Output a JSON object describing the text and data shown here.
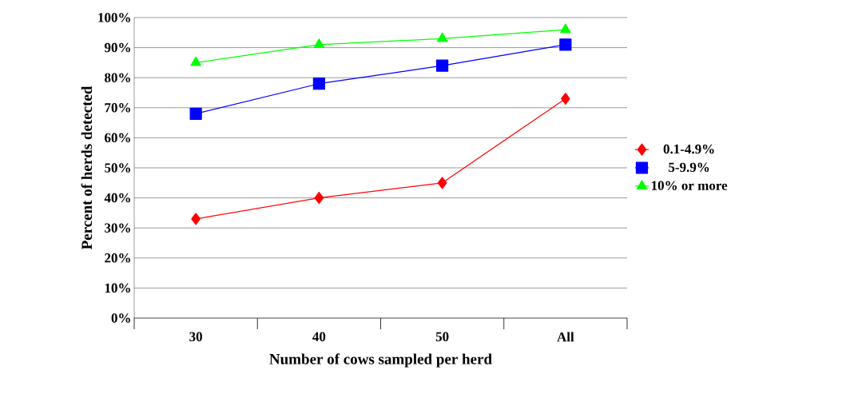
{
  "chart_data": {
    "type": "line",
    "xlabel": "Number of cows sampled per herd",
    "ylabel": "Percent of herds detected",
    "categories": [
      "30",
      "40",
      "50",
      "All"
    ],
    "series": [
      {
        "name": "0.1-4.9%",
        "color": "#ff0000",
        "marker": "diamond",
        "values": [
          33,
          40,
          45,
          73
        ]
      },
      {
        "name": "5-9.9%",
        "color": "#0000ff",
        "marker": "square",
        "values": [
          68,
          78,
          84,
          91
        ]
      },
      {
        "name": "10%  or more",
        "color": "#00ff00",
        "marker": "triangle",
        "values": [
          85,
          91,
          93,
          96
        ]
      }
    ],
    "ylim": [
      0,
      100
    ],
    "yticks": [
      {
        "value": 0,
        "label": "0%"
      },
      {
        "value": 10,
        "label": "10%"
      },
      {
        "value": 20,
        "label": "20%"
      },
      {
        "value": 30,
        "label": "30%"
      },
      {
        "value": 40,
        "label": "40%"
      },
      {
        "value": 50,
        "label": "50%"
      },
      {
        "value": 60,
        "label": "60%"
      },
      {
        "value": 70,
        "label": "70%"
      },
      {
        "value": 80,
        "label": "80%"
      },
      {
        "value": 90,
        "label": "90%"
      },
      {
        "value": 100,
        "label": "100%"
      }
    ],
    "grid": "y",
    "legend": "right",
    "line_style": "solid"
  }
}
